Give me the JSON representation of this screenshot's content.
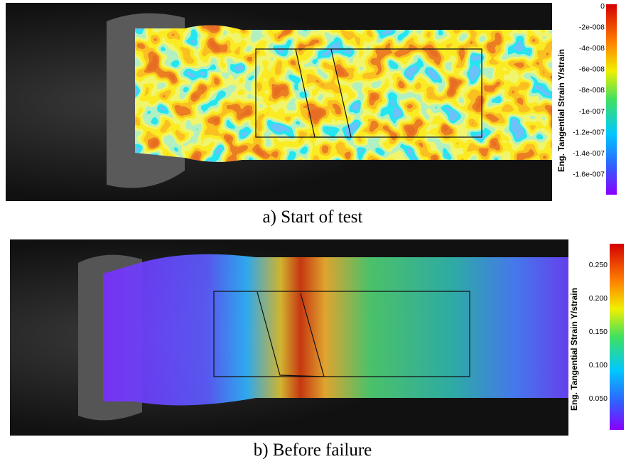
{
  "panels": [
    {
      "caption": "a) Start of test",
      "colorbar_label": "Eng. Tangential Strain Y/strain",
      "colorbar_ticks": [
        "0",
        "-2e-008",
        "-4e-008",
        "-6e-008",
        "-8e-008",
        "-1e-007",
        "-1.2e-007",
        "-1.4e-007",
        "-1.6e-007"
      ]
    },
    {
      "caption": "b) Before failure",
      "colorbar_label": "Eng. Tangential Strain Y/strain",
      "colorbar_ticks": [
        "0.250",
        "0.200",
        "0.150",
        "0.100",
        "0.050"
      ]
    }
  ]
}
